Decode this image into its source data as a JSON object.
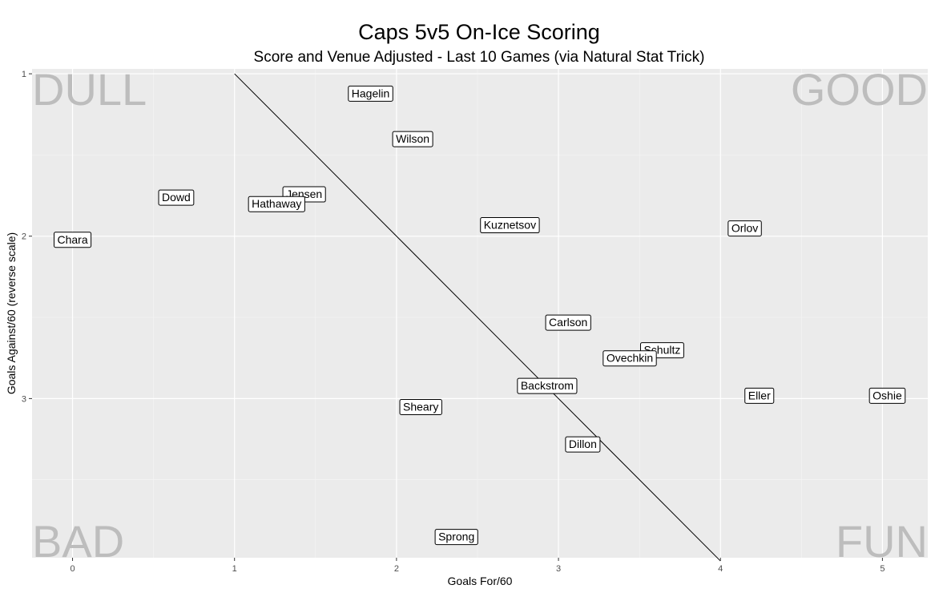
{
  "chart_data": {
    "type": "scatter",
    "title": "Caps 5v5 On-Ice Scoring",
    "subtitle": "Score and Venue Adjusted - Last 10 Games (via Natural Stat Trick)",
    "xlabel": "Goals For/60",
    "ylabel": "Goals Against/60 (reverse scale)",
    "xlim": [
      -0.25,
      5.28
    ],
    "ylim": [
      0.97,
      3.98
    ],
    "y_reversed": true,
    "grid": true,
    "x_ticks": [
      0,
      1,
      2,
      3,
      4,
      5
    ],
    "y_ticks": [
      1,
      2,
      3
    ],
    "reference_line": {
      "from": [
        1.0,
        1.0
      ],
      "to": [
        4.0,
        4.0
      ]
    },
    "quadrant_labels": {
      "top_left": "DULL",
      "top_right": "GOOD",
      "bottom_left": "BAD",
      "bottom_right": "FUN"
    },
    "points": [
      {
        "label": "Hagelin",
        "x": 1.84,
        "y": 1.12
      },
      {
        "label": "Wilson",
        "x": 2.1,
        "y": 1.4
      },
      {
        "label": "Dowd",
        "x": 0.64,
        "y": 1.76
      },
      {
        "label": "Jensen",
        "x": 1.43,
        "y": 1.74
      },
      {
        "label": "Hathaway",
        "x": 1.26,
        "y": 1.8
      },
      {
        "label": "Kuznetsov",
        "x": 2.7,
        "y": 1.93
      },
      {
        "label": "Orlov",
        "x": 4.15,
        "y": 1.95
      },
      {
        "label": "Chara",
        "x": 0.0,
        "y": 2.02
      },
      {
        "label": "Carlson",
        "x": 3.06,
        "y": 2.53
      },
      {
        "label": "Schultz",
        "x": 3.64,
        "y": 2.7
      },
      {
        "label": "Ovechkin",
        "x": 3.44,
        "y": 2.75
      },
      {
        "label": "Backstrom",
        "x": 2.93,
        "y": 2.92
      },
      {
        "label": "Eller",
        "x": 4.24,
        "y": 2.98
      },
      {
        "label": "Oshie",
        "x": 5.03,
        "y": 2.98
      },
      {
        "label": "Sheary",
        "x": 2.15,
        "y": 3.05
      },
      {
        "label": "Dillon",
        "x": 3.15,
        "y": 3.28
      },
      {
        "label": "Sprong",
        "x": 2.37,
        "y": 3.85
      }
    ]
  }
}
